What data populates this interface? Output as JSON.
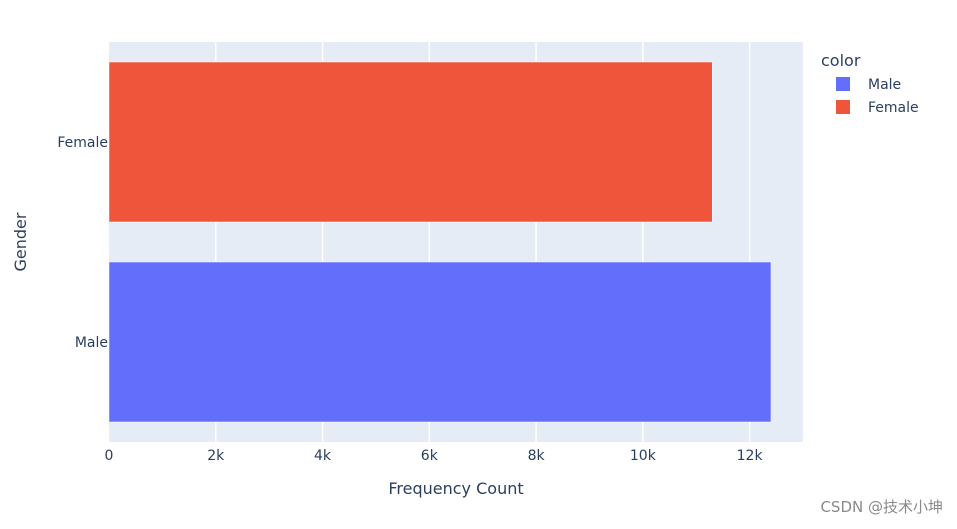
{
  "chart_data": {
    "type": "bar",
    "orientation": "horizontal",
    "categories": [
      "Male",
      "Female"
    ],
    "series": [
      {
        "name": "Male",
        "category": "Male",
        "value": 12400,
        "color": "#636efa"
      },
      {
        "name": "Female",
        "category": "Female",
        "value": 11300,
        "color": "#ef553b"
      }
    ],
    "xlabel": "Frequency Count",
    "ylabel": "Gender",
    "xlim": [
      0,
      13000
    ],
    "xticks": [
      0,
      2000,
      4000,
      6000,
      8000,
      10000,
      12000
    ],
    "xtick_labels": [
      "0",
      "2k",
      "4k",
      "6k",
      "8k",
      "10k",
      "12k"
    ],
    "grid": true,
    "legend": {
      "title": "color",
      "placement": "top-right",
      "entries": [
        "Male",
        "Female"
      ]
    },
    "colors": {
      "plot_bg": "#e5ecf6",
      "grid": "#ffffff",
      "text": "#2a3f5f"
    }
  },
  "watermark": "CSDN @技术小坤"
}
